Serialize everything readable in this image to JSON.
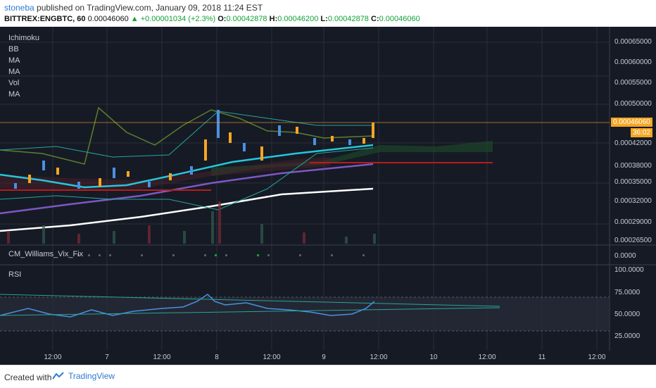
{
  "header": {
    "user": "stoneba",
    "published": "published on TradingView.com, January 09, 2018 11:24 EST",
    "symbol": "BITTREX:ENGBTC, 60",
    "price": "0.00046060",
    "change": "▲ +0.00001034 (+2.3%)",
    "o_label": "O:",
    "o": "0.00042878",
    "h_label": "H:",
    "h": "0.00046200",
    "l_label": "L:",
    "l": "0.00042878",
    "c_label": "C:",
    "c": "0.00046060"
  },
  "indicators": [
    "Ichimoku",
    "BB",
    "MA",
    "MA",
    "Vol",
    "MA"
  ],
  "price_axis": [
    "0.00065000",
    "0.00060000",
    "0.00055000",
    "0.00050000",
    "0.00042000",
    "0.00038000",
    "0.00035000",
    "0.00032000",
    "0.00029000",
    "0.00026500"
  ],
  "price_tag": "0.00046060",
  "time_tag": "36:02",
  "vix": {
    "label": "CM_Williams_Vix_Fix",
    "value": "0.0000"
  },
  "rsi": {
    "label": "RSI",
    "axis": [
      "100.0000",
      "75.0000",
      "50.0000",
      "25.0000"
    ]
  },
  "x_axis": [
    "12:00",
    "7",
    "12:00",
    "8",
    "12:00",
    "9",
    "12:00",
    "10",
    "12:00",
    "11",
    "12:00"
  ],
  "footer": {
    "created": "Created with",
    "brand": "TradingView"
  },
  "colors": {
    "bg": "#161a25",
    "up": "#f5a623",
    "down": "#4a90e2",
    "accent": "#2e7bcf"
  }
}
